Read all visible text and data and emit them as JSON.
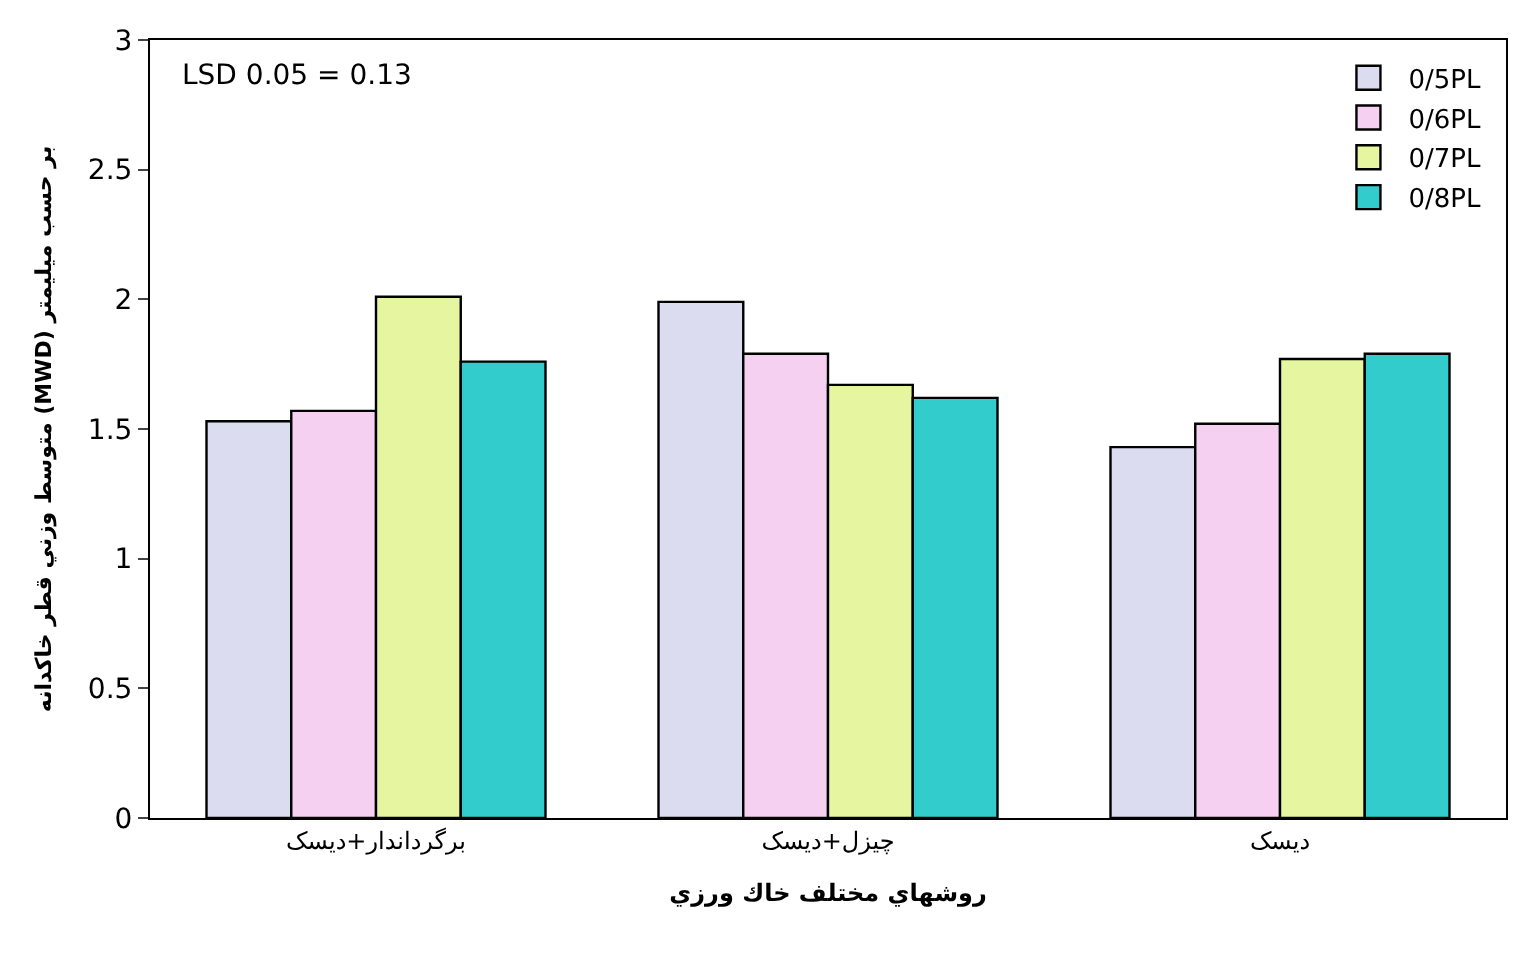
{
  "chart_data": {
    "type": "bar",
    "xlabel": "روشهاي مختلف خاك ورزي",
    "ylabel": "متوسط وزني قطر خاكدانه (MWD) بر حسب ميليمتر",
    "categories": [
      "برگرداندار+دیسک",
      "چیزل+دیسک",
      "دیسک"
    ],
    "series": [
      {
        "name": "0/5PL",
        "color": "#dcdcf0",
        "values": [
          1.53,
          1.99,
          1.43
        ]
      },
      {
        "name": "0/6PL",
        "color": "#f5d0f0",
        "values": [
          1.57,
          1.79,
          1.52
        ]
      },
      {
        "name": "0/7PL",
        "color": "#e6f5a0",
        "values": [
          2.01,
          1.67,
          1.77
        ]
      },
      {
        "name": "0/8PL",
        "color": "#33cccc",
        "values": [
          1.76,
          1.62,
          1.79
        ]
      }
    ],
    "ylim": [
      0,
      3
    ],
    "yticks": [
      0,
      0.5,
      1,
      1.5,
      2,
      2.5,
      3
    ],
    "legend": "top right",
    "annotations": [
      "LSD 0.05 = 0.13"
    ]
  }
}
